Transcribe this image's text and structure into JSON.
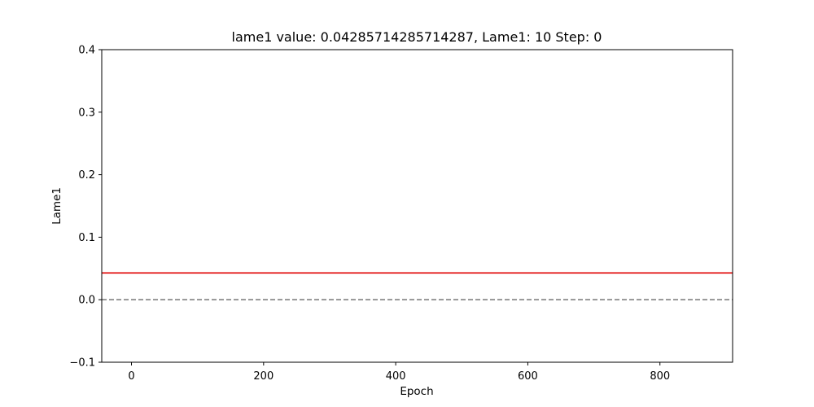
{
  "chart_data": {
    "type": "line",
    "title": "lame1 value: 0.04285714285714287, Lame1: 10 Step: 0",
    "xlabel": "Epoch",
    "ylabel": "Lame1",
    "xlim": [
      -45,
      910
    ],
    "ylim": [
      -0.1,
      0.4
    ],
    "xticks": [
      0,
      200,
      400,
      600,
      800
    ],
    "xtick_labels": [
      "0",
      "200",
      "400",
      "600",
      "800"
    ],
    "yticks": [
      -0.1,
      0.0,
      0.1,
      0.2,
      0.3,
      0.4
    ],
    "ytick_labels": [
      "−0.1",
      "0.0",
      "0.1",
      "0.2",
      "0.3",
      "0.4"
    ],
    "grid": false,
    "series": [
      {
        "color": "#e00000",
        "style": "solid",
        "x": [
          -45,
          910
        ],
        "y": [
          0.04285714285714287,
          0.04285714285714287
        ]
      },
      {
        "color": "#808080",
        "style": "dashed",
        "x": [
          -45,
          910
        ],
        "y": [
          0.0,
          0.0
        ]
      }
    ]
  }
}
